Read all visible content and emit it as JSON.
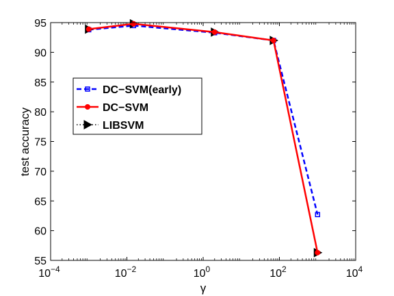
{
  "chart_data": {
    "type": "line",
    "title": "",
    "xlabel": "γ",
    "ylabel": "test accuracy",
    "xscale": "log",
    "xlim": [
      0.0001,
      10000
    ],
    "ylim": [
      55,
      95
    ],
    "x_ticks": [
      {
        "value": 0.0001,
        "base": "10",
        "exp": "−4"
      },
      {
        "value": 0.01,
        "base": "10",
        "exp": "−2"
      },
      {
        "value": 1,
        "base": "10",
        "exp": "0"
      },
      {
        "value": 100,
        "base": "10",
        "exp": "2"
      },
      {
        "value": 10000,
        "base": "10",
        "exp": "4"
      }
    ],
    "y_ticks": [
      "55",
      "60",
      "65",
      "70",
      "75",
      "80",
      "85",
      "90",
      "95"
    ],
    "grid": false,
    "legend_position": "left",
    "series": [
      {
        "name": "DC−SVM(early)",
        "color": "#0000ff",
        "style": "dashed",
        "marker": "square",
        "x": [
          0.001,
          0.015,
          2,
          70,
          1000
        ],
        "y": [
          93.8,
          94.5,
          93.3,
          92.0,
          62.7
        ]
      },
      {
        "name": "DC−SVM",
        "color": "#ff0000",
        "style": "solid",
        "marker": "circle",
        "x": [
          0.001,
          0.015,
          2,
          70,
          1000
        ],
        "y": [
          93.9,
          94.8,
          93.4,
          92.0,
          56.3
        ]
      },
      {
        "name": "LIBSVM",
        "color": "#000000",
        "style": "dotted",
        "marker": "triangle-right",
        "x": [
          0.001,
          0.015,
          2,
          70,
          1000
        ],
        "y": [
          93.9,
          94.8,
          93.4,
          92.0,
          56.3
        ]
      }
    ]
  }
}
